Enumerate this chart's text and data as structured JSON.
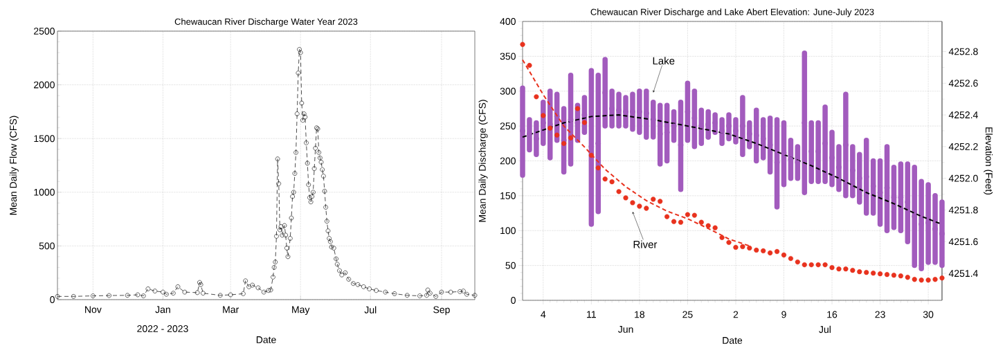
{
  "chart_data": [
    {
      "type": "line",
      "title": "Chewaucan River Discharge Water Year 2023",
      "xlabel": "Date",
      "ylabel": "Mean Daily Flow (CFS)",
      "x": [
        "2022-10-01",
        "2022-10-15",
        "2022-11-01",
        "2022-11-15",
        "2022-12-01",
        "2022-12-10",
        "2022-12-15",
        "2022-12-19",
        "2022-12-25",
        "2023-01-01",
        "2023-01-04",
        "2023-01-10",
        "2023-01-14",
        "2023-01-20",
        "2023-01-31",
        "2023-02-02",
        "2023-02-03",
        "2023-02-05",
        "2023-02-20",
        "2023-03-01",
        "2023-03-12",
        "2023-03-14",
        "2023-03-17",
        "2023-03-20",
        "2023-03-25",
        "2023-03-30",
        "2023-04-03",
        "2023-04-05",
        "2023-04-07",
        "2023-04-08",
        "2023-04-09",
        "2023-04-10",
        "2023-04-11",
        "2023-04-12",
        "2023-04-13",
        "2023-04-14",
        "2023-04-15",
        "2023-04-17",
        "2023-04-18",
        "2023-04-19",
        "2023-04-20",
        "2023-04-22",
        "2023-04-23",
        "2023-04-24",
        "2023-04-25",
        "2023-04-26",
        "2023-04-27",
        "2023-04-28",
        "2023-04-29",
        "2023-04-30",
        "2023-05-01",
        "2023-05-02",
        "2023-05-03",
        "2023-05-04",
        "2023-05-05",
        "2023-05-06",
        "2023-05-07",
        "2023-05-08",
        "2023-05-09",
        "2023-05-10",
        "2023-05-11",
        "2023-05-12",
        "2023-05-13",
        "2023-05-14",
        "2023-05-15",
        "2023-05-16",
        "2023-05-17",
        "2023-05-18",
        "2023-05-19",
        "2023-05-20",
        "2023-05-21",
        "2023-05-22",
        "2023-05-23",
        "2023-05-24",
        "2023-05-25",
        "2023-05-26",
        "2023-05-27",
        "2023-05-28",
        "2023-05-30",
        "2023-06-01",
        "2023-06-02",
        "2023-06-04",
        "2023-06-06",
        "2023-06-09",
        "2023-06-12",
        "2023-06-16",
        "2023-06-20",
        "2023-06-25",
        "2023-06-30",
        "2023-07-06",
        "2023-07-14",
        "2023-07-22",
        "2023-08-02",
        "2023-08-13",
        "2023-08-19",
        "2023-08-20",
        "2023-08-22",
        "2023-08-27",
        "2023-09-01",
        "2023-09-09",
        "2023-09-17",
        "2023-09-20",
        "2023-09-23",
        "2023-09-30"
      ],
      "values": [
        30,
        30,
        35,
        38,
        40,
        45,
        35,
        100,
        80,
        70,
        50,
        60,
        120,
        70,
        65,
        160,
        140,
        60,
        40,
        45,
        55,
        175,
        120,
        135,
        110,
        70,
        85,
        90,
        210,
        300,
        350,
        590,
        1310,
        1080,
        650,
        680,
        600,
        690,
        600,
        480,
        400,
        570,
        760,
        960,
        1000,
        1175,
        1370,
        1730,
        2110,
        2330,
        2300,
        1830,
        1670,
        1730,
        1700,
        1460,
        1270,
        1070,
        950,
        910,
        960,
        1000,
        1220,
        1410,
        1600,
        1590,
        1370,
        1320,
        1280,
        1210,
        1150,
        1010,
        860,
        730,
        640,
        570,
        540,
        490,
        480,
        380,
        330,
        270,
        230,
        250,
        190,
        150,
        140,
        120,
        100,
        85,
        70,
        55,
        40,
        35,
        40,
        90,
        60,
        30,
        70,
        70,
        75,
        80,
        50,
        40
      ],
      "color": "#000000",
      "marker": "circle",
      "line_style": "dashed",
      "xlim": [
        "2022-10-01",
        "2023-09-30"
      ],
      "ylim": [
        0,
        2500
      ],
      "xticks": [
        {
          "value": "2022-11-01",
          "label": "Nov"
        },
        {
          "value": "2023-01-01",
          "label": "Jan"
        },
        {
          "value": "2023-03-01",
          "label": "Mar"
        },
        {
          "value": "2023-05-01",
          "label": "May"
        },
        {
          "value": "2023-07-01",
          "label": "Jul"
        },
        {
          "value": "2023-09-01",
          "label": "Sep"
        }
      ],
      "yticks": [
        0,
        500,
        1000,
        1500,
        2000,
        2500
      ],
      "grid": true,
      "annotations": [
        "2022 - 2023"
      ]
    },
    {
      "type": "scatter",
      "title": "Chewaucan River Discharge and Lake Abert Elevation: June-July 2023",
      "xlabel": "Date",
      "ylabel": "Mean Daily Discharge (CFS)",
      "y2label": "Elevation (Feet)",
      "x": [
        "2023-06-01",
        "2023-06-02",
        "2023-06-03",
        "2023-06-04",
        "2023-06-05",
        "2023-06-06",
        "2023-06-07",
        "2023-06-08",
        "2023-06-09",
        "2023-06-10",
        "2023-06-11",
        "2023-06-12",
        "2023-06-13",
        "2023-06-14",
        "2023-06-15",
        "2023-06-16",
        "2023-06-17",
        "2023-06-18",
        "2023-06-19",
        "2023-06-20",
        "2023-06-21",
        "2023-06-22",
        "2023-06-23",
        "2023-06-24",
        "2023-06-25",
        "2023-06-26",
        "2023-06-27",
        "2023-06-28",
        "2023-06-29",
        "2023-06-30",
        "2023-07-01",
        "2023-07-02",
        "2023-07-03",
        "2023-07-04",
        "2023-07-05",
        "2023-07-06",
        "2023-07-07",
        "2023-07-08",
        "2023-07-09",
        "2023-07-10",
        "2023-07-11",
        "2023-07-12",
        "2023-07-13",
        "2023-07-14",
        "2023-07-15",
        "2023-07-16",
        "2023-07-17",
        "2023-07-18",
        "2023-07-19",
        "2023-07-20",
        "2023-07-21",
        "2023-07-22",
        "2023-07-23",
        "2023-07-24",
        "2023-07-25",
        "2023-07-26",
        "2023-07-27",
        "2023-07-28",
        "2023-07-29",
        "2023-07-30",
        "2023-07-31",
        "2023-08-01"
      ],
      "series": [
        {
          "type": "scatter",
          "axis": "y2",
          "color": "#a25bbd",
          "marker": "circle",
          "values": [
            4252.3,
            4252.28,
            4252.25,
            4252.35,
            4252.34,
            4252.39,
            4252.24,
            4252.37,
            4252.35,
            4252.4,
            4252.2,
            4252.22,
            4252.54,
            4252.44,
            4252.43,
            4252.42,
            4252.42,
            4252.42,
            4252.41,
            4252.37,
            4252.28,
            4252.29,
            4252.33,
            4252.21,
            4252.42,
            4252.38,
            4252.33,
            4252.34,
            4252.35,
            4252.3,
            4252.33,
            4252.3,
            4252.33,
            4252.28,
            4252.27,
            4252.25,
            4252.21,
            4252.1,
            4252.16,
            4252.12,
            4252.1,
            4252.35,
            4252.17,
            4252.17,
            4252.22,
            4252.13,
            4252.07,
            4252.21,
            4252.05,
            4252.0,
            4252.01,
            4251.95,
            4251.91,
            4251.94,
            4251.88,
            4251.88,
            4251.85,
            4251.76,
            4251.71,
            4251.72,
            4251.68,
            4251.65
          ],
          "errors": [
            [
              4252.02,
              4252.57
            ],
            [
              4252.18,
              4252.37
            ],
            [
              4252.15,
              4252.35
            ],
            [
              4252.22,
              4252.48
            ],
            [
              4252.13,
              4252.55
            ],
            [
              4252.24,
              4252.53
            ],
            [
              4252.04,
              4252.44
            ],
            [
              4252.09,
              4252.65
            ],
            [
              4252.24,
              4252.46
            ],
            [
              4252.29,
              4252.51
            ],
            [
              4251.71,
              4252.68
            ],
            [
              4251.79,
              4252.65
            ],
            [
              4252.33,
              4252.75
            ],
            [
              4252.33,
              4252.55
            ],
            [
              4252.33,
              4252.53
            ],
            [
              4252.33,
              4252.51
            ],
            [
              4252.31,
              4252.53
            ],
            [
              4252.29,
              4252.55
            ],
            [
              4252.26,
              4252.55
            ],
            [
              4252.26,
              4252.48
            ],
            [
              4252.09,
              4252.46
            ],
            [
              4252.11,
              4252.46
            ],
            [
              4252.24,
              4252.42
            ],
            [
              4251.93,
              4252.48
            ],
            [
              4252.24,
              4252.6
            ],
            [
              4252.2,
              4252.55
            ],
            [
              4252.22,
              4252.43
            ],
            [
              4252.26,
              4252.42
            ],
            [
              4252.29,
              4252.4
            ],
            [
              4252.22,
              4252.37
            ],
            [
              4252.25,
              4252.4
            ],
            [
              4252.23,
              4252.37
            ],
            [
              4252.15,
              4252.51
            ],
            [
              4252.2,
              4252.35
            ],
            [
              4252.11,
              4252.43
            ],
            [
              4252.13,
              4252.37
            ],
            [
              4252.04,
              4252.38
            ],
            [
              4251.82,
              4252.37
            ],
            [
              4251.96,
              4252.35
            ],
            [
              4252.0,
              4252.24
            ],
            [
              4252.0,
              4252.2
            ],
            [
              4251.91,
              4252.79
            ],
            [
              4251.98,
              4252.35
            ],
            [
              4251.98,
              4252.35
            ],
            [
              4251.98,
              4252.45
            ],
            [
              4251.96,
              4252.29
            ],
            [
              4251.93,
              4252.2
            ],
            [
              4251.89,
              4252.53
            ],
            [
              4251.89,
              4252.2
            ],
            [
              4251.85,
              4252.15
            ],
            [
              4251.78,
              4252.24
            ],
            [
              4251.78,
              4252.11
            ],
            [
              4251.71,
              4252.11
            ],
            [
              4251.67,
              4252.2
            ],
            [
              4251.69,
              4252.07
            ],
            [
              4251.67,
              4252.09
            ],
            [
              4251.6,
              4252.09
            ],
            [
              4251.45,
              4252.07
            ],
            [
              4251.43,
              4251.98
            ],
            [
              4251.47,
              4251.96
            ],
            [
              4251.47,
              4251.89
            ],
            [
              4251.45,
              4251.85
            ]
          ]
        },
        {
          "type": "line",
          "axis": "y2",
          "color": "#000000",
          "line_style": "dashed",
          "x": [
            "2023-06-01",
            "2023-06-07",
            "2023-06-11",
            "2023-06-15",
            "2023-06-20",
            "2023-06-25",
            "2023-07-01",
            "2023-07-05",
            "2023-07-09",
            "2023-07-13",
            "2023-07-17",
            "2023-07-21",
            "2023-07-25",
            "2023-07-29",
            "2023-08-01"
          ],
          "values": [
            4252.26,
            4252.35,
            4252.39,
            4252.4,
            4252.37,
            4252.33,
            4252.28,
            4252.22,
            4252.15,
            4252.08,
            4252.0,
            4251.91,
            4251.84,
            4251.76,
            4251.71
          ]
        },
        {
          "type": "scatter",
          "color": "#e8321e",
          "marker": "circle",
          "values": [
            367,
            337,
            292,
            265,
            247,
            237,
            225,
            233,
            275,
            255,
            208,
            190,
            174,
            170,
            156,
            147,
            140,
            135,
            132,
            145,
            142,
            120,
            113,
            112,
            123,
            122,
            112,
            107,
            104,
            90,
            83,
            76,
            77,
            75,
            72,
            71,
            68,
            70,
            65,
            60,
            55,
            51,
            51,
            51,
            51,
            47,
            45,
            45,
            43,
            41,
            40,
            39,
            38,
            37,
            36,
            35,
            33,
            30,
            29,
            29,
            30,
            32
          ]
        },
        {
          "type": "line",
          "color": "#e8321e",
          "line_style": "dashed",
          "x": [
            "2023-06-01",
            "2023-06-04",
            "2023-06-07",
            "2023-06-10",
            "2023-06-13",
            "2023-06-16",
            "2023-06-19",
            "2023-06-22",
            "2023-06-25",
            "2023-06-28",
            "2023-07-01",
            "2023-07-04"
          ],
          "values": [
            345,
            295,
            250,
            220,
            188,
            163,
            143,
            128,
            117,
            103,
            88,
            78
          ]
        }
      ],
      "xlim": [
        "2023-06-01",
        "2023-08-01"
      ],
      "ylim": [
        0,
        400
      ],
      "y2lim": [
        4251.23,
        4252.99
      ],
      "xticks": [
        {
          "value": "2023-06-04",
          "label": "4"
        },
        {
          "value": "2023-06-11",
          "label": "11"
        },
        {
          "value": "2023-06-18",
          "label": "18"
        },
        {
          "value": "2023-06-25",
          "label": "25"
        },
        {
          "value": "2023-07-02",
          "label": "2"
        },
        {
          "value": "2023-07-09",
          "label": "9"
        },
        {
          "value": "2023-07-16",
          "label": "16"
        },
        {
          "value": "2023-07-23",
          "label": "23"
        },
        {
          "value": "2023-07-30",
          "label": "30"
        }
      ],
      "yticks": [
        0,
        50,
        100,
        150,
        200,
        250,
        300,
        350,
        400
      ],
      "y2ticks": [
        4251.4,
        4251.6,
        4251.8,
        {
          "value": 4252,
          "label": "4252.0"
        },
        4252.2,
        4252.4,
        4252.6,
        4252.8
      ],
      "grid": true,
      "annotations": [
        {
          "text": "Lake",
          "x": "2023-06-20",
          "y": 298
        },
        {
          "text": "River",
          "x": "2023-06-17",
          "y": 127
        },
        "Jun",
        "Jul"
      ]
    }
  ]
}
